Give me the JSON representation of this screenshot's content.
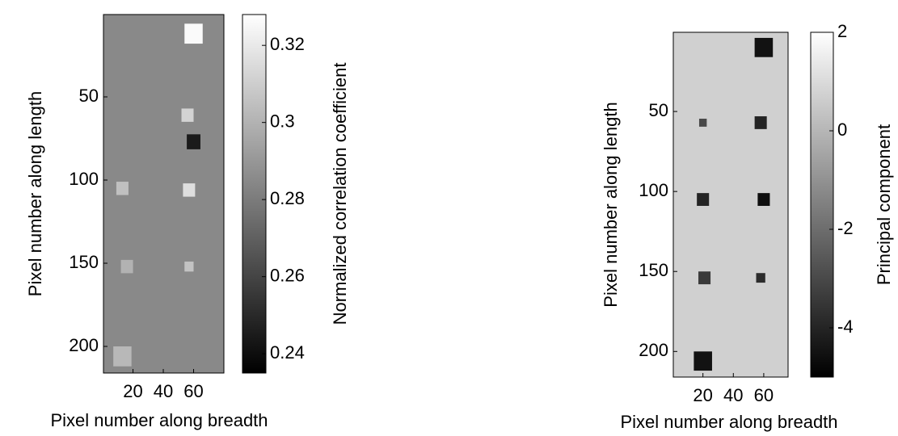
{
  "chart_data": [
    {
      "type": "heatmap",
      "x_label": "Pixel number along breadth",
      "y_label": "Pixel number along length",
      "colorbar_label": "Normalized correlation coefficient",
      "xlim": [
        0.5,
        80
      ],
      "ylim": [
        0.5,
        216
      ],
      "xticks": [
        20,
        40,
        60
      ],
      "yticks": [
        50,
        100,
        150,
        200
      ],
      "clim": [
        0.235,
        0.328
      ],
      "cticks": [
        0.24,
        0.26,
        0.28,
        0.3,
        0.32
      ],
      "colormap": "gray",
      "background": 0.285,
      "spots": [
        {
          "x": 60,
          "y": 12,
          "size": 12,
          "value": 0.326
        },
        {
          "x": 56,
          "y": 61,
          "size": 8,
          "value": 0.312
        },
        {
          "x": 60,
          "y": 77,
          "size": 9,
          "value": 0.245
        },
        {
          "x": 13,
          "y": 105,
          "size": 8,
          "value": 0.305
        },
        {
          "x": 57,
          "y": 106,
          "size": 8,
          "value": 0.316
        },
        {
          "x": 16,
          "y": 152,
          "size": 8,
          "value": 0.3
        },
        {
          "x": 57,
          "y": 152,
          "size": 6,
          "value": 0.306
        },
        {
          "x": 13,
          "y": 206,
          "size": 12,
          "value": 0.302
        }
      ]
    },
    {
      "type": "heatmap",
      "x_label": "Pixel number along breadth",
      "y_label": "Pixel number along length",
      "colorbar_label": "Principal component",
      "xlim": [
        0.5,
        76
      ],
      "ylim": [
        0.5,
        216
      ],
      "xticks": [
        20,
        40,
        60
      ],
      "yticks": [
        50,
        100,
        150,
        200
      ],
      "clim": [
        -5,
        2
      ],
      "cticks": [
        -4,
        -2,
        0,
        2
      ],
      "colormap": "gray",
      "background": 0.7,
      "spots": [
        {
          "x": 60,
          "y": 10,
          "size": 12,
          "value": -4.5
        },
        {
          "x": 20,
          "y": 57,
          "size": 5,
          "value": -3
        },
        {
          "x": 58,
          "y": 57,
          "size": 8,
          "value": -4
        },
        {
          "x": 20,
          "y": 105,
          "size": 8,
          "value": -4
        },
        {
          "x": 60,
          "y": 105,
          "size": 8,
          "value": -4.6
        },
        {
          "x": 21,
          "y": 154,
          "size": 8,
          "value": -3.4
        },
        {
          "x": 58,
          "y": 154,
          "size": 6,
          "value": -3.8
        },
        {
          "x": 20,
          "y": 206,
          "size": 12,
          "value": -4.5
        }
      ]
    }
  ]
}
